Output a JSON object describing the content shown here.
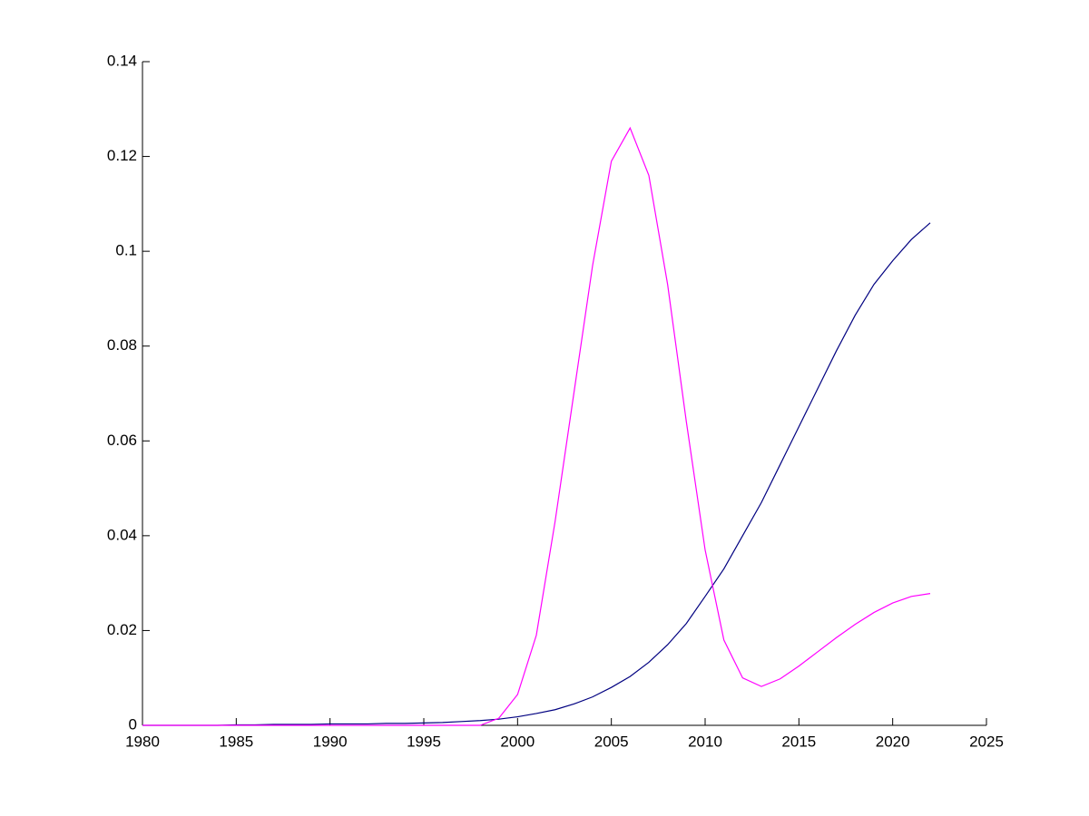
{
  "chart_data": {
    "type": "line",
    "x": [
      1980,
      1981,
      1982,
      1983,
      1984,
      1985,
      1986,
      1987,
      1988,
      1989,
      1990,
      1991,
      1992,
      1993,
      1994,
      1995,
      1996,
      1997,
      1998,
      1999,
      2000,
      2001,
      2002,
      2003,
      2004,
      2005,
      2006,
      2007,
      2008,
      2009,
      2010,
      2011,
      2012,
      2013,
      2014,
      2015,
      2016,
      2017,
      2018,
      2019,
      2020,
      2021,
      2022
    ],
    "series": [
      {
        "color": "#000080",
        "values": [
          0,
          0,
          0,
          0,
          0,
          0.0001,
          0.0001,
          0.0002,
          0.0002,
          0.0002,
          0.0003,
          0.0003,
          0.0003,
          0.0004,
          0.0004,
          0.0005,
          0.0006,
          0.0008,
          0.001,
          0.0013,
          0.0018,
          0.0025,
          0.0033,
          0.0045,
          0.006,
          0.008,
          0.0103,
          0.0133,
          0.017,
          0.0215,
          0.0272,
          0.033,
          0.04,
          0.047,
          0.055,
          0.063,
          0.071,
          0.079,
          0.0865,
          0.093,
          0.098,
          0.1025,
          0.106
        ]
      },
      {
        "color": "#ff00ff",
        "values": [
          0,
          0,
          0,
          0,
          0,
          0,
          0,
          0,
          0,
          0,
          0,
          0,
          0,
          0,
          0,
          0,
          0,
          0,
          0,
          0.0015,
          0.0065,
          0.019,
          0.043,
          0.07,
          0.097,
          0.119,
          0.126,
          0.116,
          0.093,
          0.064,
          0.037,
          0.018,
          0.01,
          0.0082,
          0.0098,
          0.0125,
          0.0155,
          0.0185,
          0.0213,
          0.0238,
          0.0258,
          0.0272,
          0.0278
        ]
      }
    ],
    "xlim": [
      1980,
      2025
    ],
    "xticks": [
      1980,
      1985,
      1990,
      1995,
      2000,
      2005,
      2010,
      2015,
      2020,
      2025
    ],
    "ylim": [
      0,
      0.14
    ],
    "yticks": [
      0,
      0.02,
      0.04,
      0.06,
      0.08,
      0.1,
      0.12,
      0.14
    ],
    "grid": false
  }
}
